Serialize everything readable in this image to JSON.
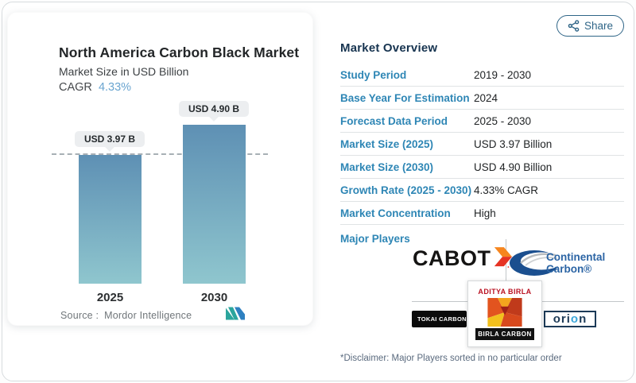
{
  "chart_card": {
    "title": "North America Carbon Black Market",
    "subtitle": "Market Size in USD Billion",
    "cagr_label": "CAGR",
    "cagr_value": "4.33%",
    "source_prefix": "Source :",
    "source_name": "Mordor Intelligence"
  },
  "chart_data": {
    "type": "bar",
    "categories": [
      "2025",
      "2030"
    ],
    "values": [
      3.97,
      4.9
    ],
    "bar_labels": [
      "USD 3.97 B",
      "USD 4.90 B"
    ],
    "title": "North America Carbon Black Market",
    "ylabel": "Market Size in USD Billion",
    "cagr": "4.33%",
    "reference_line_value": 3.97,
    "legend": "none",
    "grid": "off",
    "bar_color_top": "#5e90b4",
    "bar_color_bottom": "#8fc6ce"
  },
  "share_button": {
    "label": "Share"
  },
  "overview": {
    "heading": "Market Overview",
    "rows": [
      {
        "label": "Study Period",
        "value": "2019 - 2030"
      },
      {
        "label": "Base Year For Estimation",
        "value": "2024"
      },
      {
        "label": "Forecast Data Period",
        "value": "2025 - 2030"
      },
      {
        "label": "Market Size (2025)",
        "value": "USD 3.97 Billion"
      },
      {
        "label": "Market Size (2030)",
        "value": "USD 4.90 Billion"
      },
      {
        "label": "Growth Rate (2025 - 2030)",
        "value": "4.33% CAGR"
      },
      {
        "label": "Market Concentration",
        "value": "High"
      }
    ],
    "major_players_label": "Major Players",
    "major_players": [
      "Cabot",
      "Continental Carbon",
      "Tokai Carbon",
      "Birla Carbon (Aditya Birla)",
      "Orion"
    ],
    "disclaimer": "*Disclaimer: Major Players sorted in no particular order"
  },
  "logos": {
    "cabot_text": "CABOT",
    "continental_line1": "Continental",
    "continental_line2": "Carbon®",
    "tokai_text": "TOKAI CARBON",
    "birla_top": "ADITYA BIRLA",
    "birla_bottom": "BIRLA CARBON",
    "orion_part1": "or",
    "orion_part2": "i",
    "orion_part3": "o",
    "orion_part4": "n"
  },
  "colors": {
    "label_blue": "#2e86b5",
    "heading_navy": "#173450",
    "cagr_blue": "#6aa5d0",
    "share_teal": "#2f6587",
    "bar_top": "#5e90b4",
    "bar_bottom": "#8fc6ce"
  }
}
